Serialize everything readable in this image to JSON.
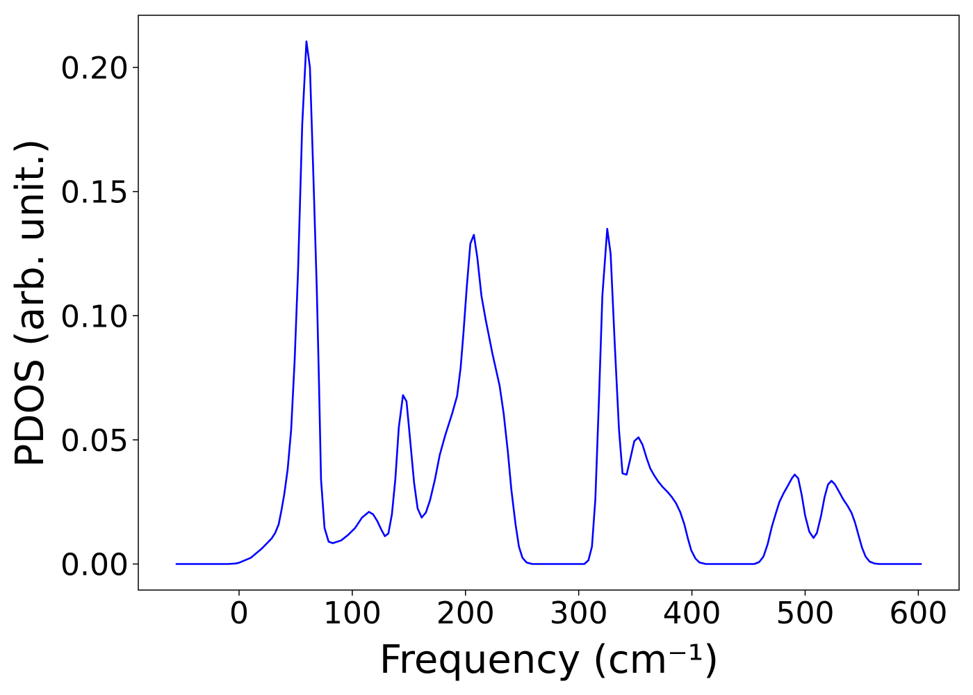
{
  "chart_data": {
    "type": "line",
    "x_label": "Frequency (cm⁻¹)",
    "y_label": "PDOS (arb. unit.)",
    "color": "#0000ff",
    "x": [
      -56,
      -10,
      -3,
      0,
      10.4,
      19.6,
      28.8,
      31.9,
      35.0,
      37.4,
      39.9,
      42.9,
      46.0,
      49.1,
      52.1,
      55.8,
      59.5,
      62.6,
      65.6,
      68.7,
      70.6,
      72.4,
      75.5,
      79.1,
      82.8,
      90.2,
      96.3,
      102.5,
      108.6,
      114.7,
      118.4,
      122.1,
      125.8,
      128.8,
      131.9,
      135.0,
      138.0,
      141.1,
      144.8,
      147.9,
      150.9,
      154.6,
      157.7,
      161.3,
      165.0,
      168.7,
      173.0,
      177.3,
      182.2,
      188.3,
      192.6,
      195.7,
      198.2,
      201.2,
      204.3,
      207.4,
      210.4,
      214.1,
      217.8,
      223.9,
      230.1,
      233.7,
      237.4,
      240.5,
      244.2,
      247.2,
      250.3,
      254.0,
      258.9,
      305,
      308.6,
      311.7,
      314.7,
      317.8,
      320.9,
      325.2,
      328.2,
      331.9,
      335.6,
      338.7,
      342.3,
      345.4,
      349.1,
      352.8,
      356.4,
      360.1,
      363.2,
      366.9,
      370.6,
      374.2,
      378.5,
      382.2,
      385.9,
      389.6,
      393.3,
      396.3,
      399.4,
      403.1,
      406.7,
      412.3,
      455.2,
      459.5,
      463.2,
      466.9,
      470.6,
      474.2,
      477.3,
      481.0,
      484.7,
      488.3,
      490.8,
      493.9,
      496.9,
      500,
      503.7,
      507.4,
      510.4,
      514.1,
      517.2,
      520.2,
      523.3,
      526.4,
      530.1,
      533.7,
      537.4,
      541.1,
      544.2,
      547.2,
      550.3,
      553.4,
      557.1,
      561.3,
      565.6,
      603
    ],
    "values": [
      0,
      0,
      0.0002,
      0.0005,
      0.0025,
      0.006,
      0.0103,
      0.0125,
      0.016,
      0.0215,
      0.028,
      0.038,
      0.054,
      0.082,
      0.118,
      0.177,
      0.2105,
      0.2,
      0.157,
      0.11,
      0.073,
      0.034,
      0.0145,
      0.009,
      0.0084,
      0.0095,
      0.0117,
      0.0145,
      0.0187,
      0.021,
      0.02,
      0.0173,
      0.0137,
      0.0112,
      0.0123,
      0.02,
      0.034,
      0.055,
      0.068,
      0.0655,
      0.051,
      0.0327,
      0.0224,
      0.0187,
      0.0207,
      0.0257,
      0.034,
      0.044,
      0.052,
      0.0607,
      0.0677,
      0.079,
      0.093,
      0.112,
      0.129,
      0.1326,
      0.1236,
      0.108,
      0.0985,
      0.0845,
      0.0719,
      0.0607,
      0.0453,
      0.03,
      0.016,
      0.007,
      0.0025,
      0.0006,
      0,
      0,
      0.0015,
      0.007,
      0.026,
      0.065,
      0.108,
      0.135,
      0.125,
      0.088,
      0.054,
      0.0365,
      0.036,
      0.042,
      0.0495,
      0.051,
      0.048,
      0.0425,
      0.0385,
      0.0355,
      0.033,
      0.031,
      0.029,
      0.027,
      0.0245,
      0.021,
      0.016,
      0.0105,
      0.0055,
      0.0022,
      0.0006,
      0,
      0,
      0.0008,
      0.003,
      0.008,
      0.015,
      0.0205,
      0.025,
      0.0285,
      0.0315,
      0.0345,
      0.036,
      0.0345,
      0.028,
      0.0195,
      0.013,
      0.0105,
      0.0125,
      0.0195,
      0.027,
      0.032,
      0.0335,
      0.032,
      0.029,
      0.026,
      0.0235,
      0.0205,
      0.0165,
      0.0115,
      0.0065,
      0.003,
      0.0009,
      0.0002,
      0,
      0
    ],
    "xlim": [
      -89,
      636
    ],
    "ylim": [
      -0.0105,
      0.221
    ],
    "xticks": [
      0,
      100,
      200,
      300,
      400,
      500,
      600
    ],
    "yticks": [
      {
        "value": 0,
        "label": "0.00"
      },
      {
        "value": 0.05,
        "label": "0.05"
      },
      {
        "value": 0.1,
        "label": "0.10"
      },
      {
        "value": 0.15,
        "label": "0.15"
      },
      {
        "value": 0.2,
        "label": "0.20"
      }
    ],
    "grid": false
  }
}
